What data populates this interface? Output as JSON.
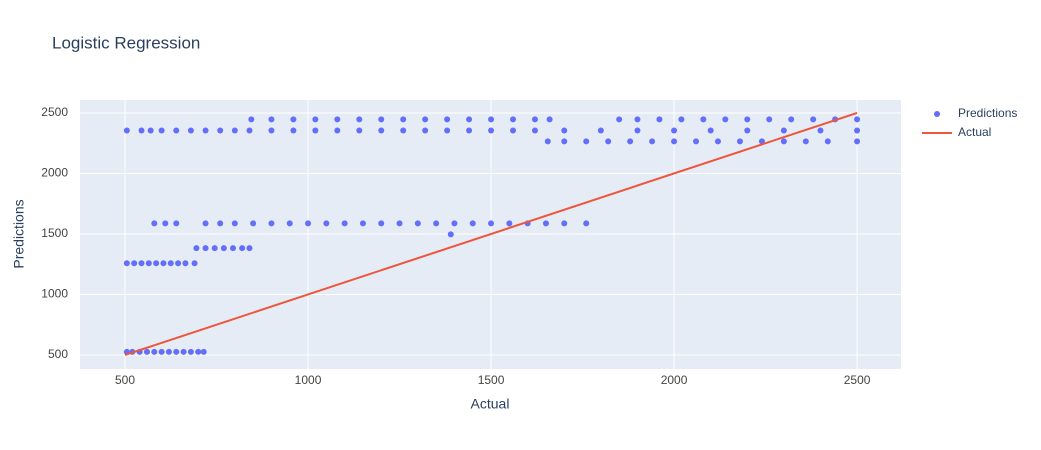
{
  "chart_data": {
    "type": "scatter",
    "title": "Logistic Regression",
    "x_label": "Actual",
    "y_label": "Predictions",
    "xlim": [
      377,
      2620
    ],
    "ylim": [
      384,
      2607
    ],
    "xticks": [
      500,
      1000,
      1500,
      2000,
      2500
    ],
    "yticks": [
      500,
      1000,
      1500,
      2000,
      2500
    ],
    "grid": true,
    "legend": "right",
    "series": [
      {
        "name": "Predictions",
        "color": "#636efa",
        "mode": "markers",
        "x": [
          505,
          520,
          540,
          560,
          580,
          600,
          620,
          640,
          660,
          680,
          700,
          715,
          505,
          525,
          545,
          565,
          585,
          605,
          625,
          645,
          665,
          690,
          695,
          720,
          745,
          770,
          795,
          820,
          840,
          580,
          610,
          640,
          720,
          760,
          800,
          850,
          900,
          950,
          1000,
          1050,
          1100,
          1150,
          1200,
          1250,
          1300,
          1350,
          1400,
          1450,
          1500,
          1550,
          1600,
          1650,
          1700,
          1760,
          505,
          545,
          570,
          600,
          640,
          680,
          720,
          760,
          800,
          840,
          900,
          960,
          1020,
          1080,
          1140,
          1200,
          1260,
          1320,
          1380,
          1440,
          1500,
          1560,
          1620,
          1700,
          1800,
          1900,
          2000,
          2100,
          2200,
          2300,
          2400,
          2500,
          845,
          900,
          960,
          1020,
          1080,
          1140,
          1200,
          1260,
          1320,
          1380,
          1440,
          1500,
          1560,
          1620,
          1660,
          1850,
          1900,
          1960,
          2020,
          2080,
          2140,
          2200,
          2260,
          2320,
          2380,
          2440,
          2500,
          1655,
          1700,
          1760,
          1820,
          1880,
          1940,
          2000,
          2060,
          2120,
          2180,
          2240,
          2300,
          2360,
          2420,
          2500,
          1390
        ],
        "values": [
          526,
          526,
          526,
          526,
          526,
          526,
          526,
          526,
          526,
          526,
          526,
          526,
          1258,
          1258,
          1258,
          1258,
          1258,
          1258,
          1258,
          1258,
          1258,
          1258,
          1383,
          1383,
          1383,
          1383,
          1383,
          1383,
          1383,
          1587,
          1587,
          1587,
          1587,
          1587,
          1587,
          1587,
          1587,
          1587,
          1587,
          1587,
          1587,
          1587,
          1587,
          1587,
          1587,
          1587,
          1587,
          1587,
          1587,
          1587,
          1587,
          1587,
          1587,
          1587,
          2355,
          2355,
          2355,
          2355,
          2355,
          2355,
          2355,
          2355,
          2355,
          2355,
          2355,
          2355,
          2355,
          2355,
          2355,
          2355,
          2355,
          2355,
          2355,
          2355,
          2355,
          2355,
          2355,
          2355,
          2355,
          2355,
          2355,
          2355,
          2355,
          2355,
          2355,
          2355,
          2447,
          2447,
          2447,
          2447,
          2447,
          2447,
          2447,
          2447,
          2447,
          2447,
          2447,
          2447,
          2447,
          2447,
          2447,
          2447,
          2447,
          2447,
          2447,
          2447,
          2447,
          2447,
          2447,
          2447,
          2447,
          2447,
          2447,
          2265,
          2265,
          2265,
          2265,
          2265,
          2265,
          2265,
          2265,
          2265,
          2265,
          2265,
          2265,
          2265,
          2265,
          2265,
          1497
        ]
      },
      {
        "name": "Actual",
        "color": "#EF553B",
        "mode": "line",
        "x": [
          500,
          2500
        ],
        "values": [
          500,
          2500
        ]
      }
    ]
  }
}
